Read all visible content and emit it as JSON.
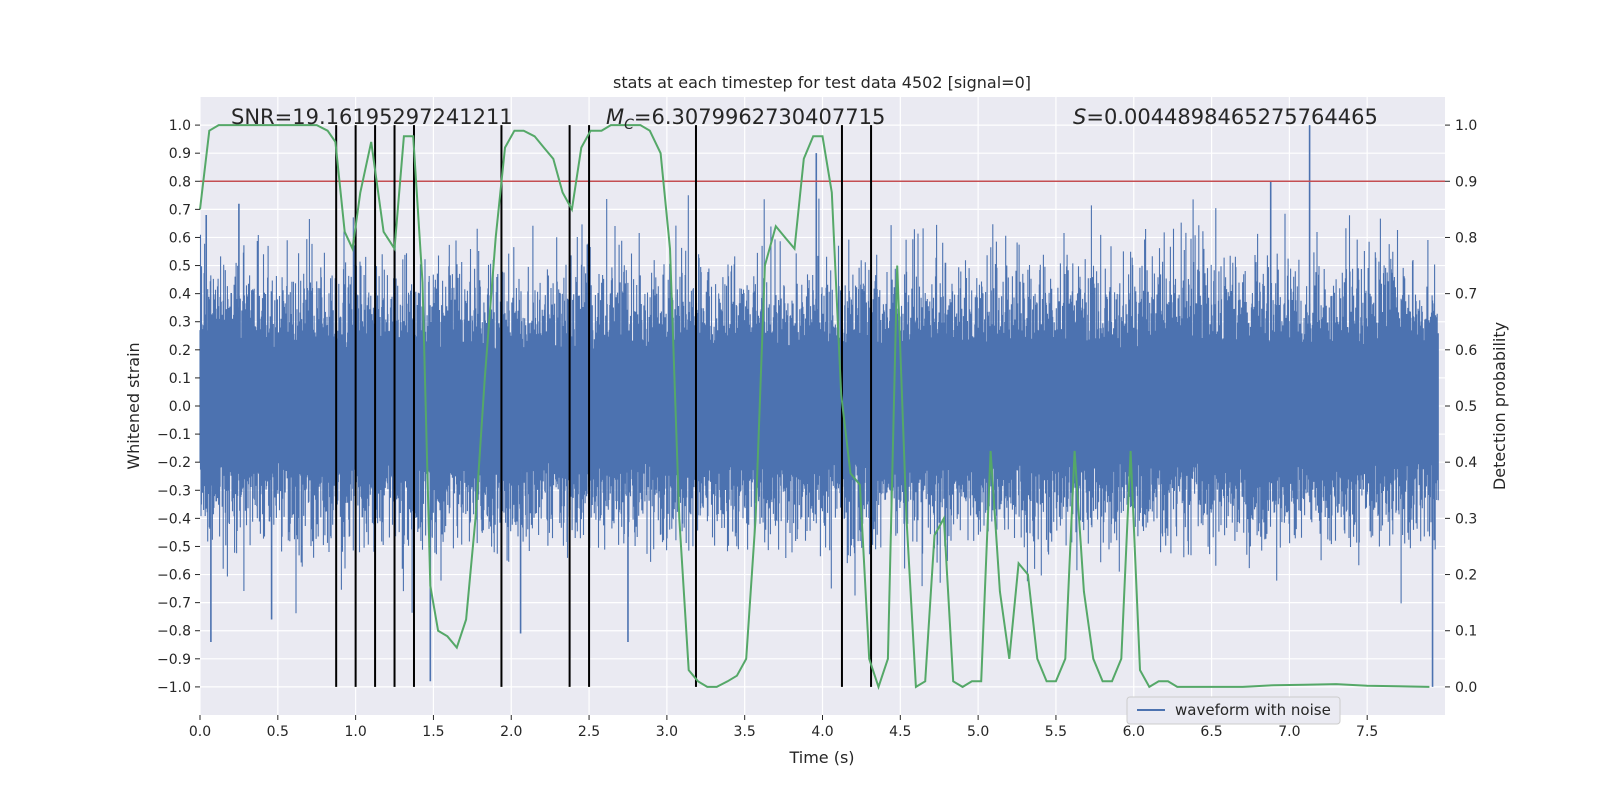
{
  "chart_data": {
    "type": "line",
    "title": "stats at each timestep for test data 4502 [signal=0]",
    "xlabel": "Time (s)",
    "ylabel_left": "Whitened strain",
    "ylabel_right": "Detection probability",
    "xlim": [
      0.0,
      8.0
    ],
    "ylim_left": [
      -1.1,
      1.1
    ],
    "ylim_right": [
      -0.05,
      1.05
    ],
    "x_ticks": [
      0.0,
      0.5,
      1.0,
      1.5,
      2.0,
      2.5,
      3.0,
      3.5,
      4.0,
      4.5,
      5.0,
      5.5,
      6.0,
      6.5,
      7.0,
      7.5
    ],
    "x_tick_labels": [
      "0.0",
      "0.5",
      "1.0",
      "1.5",
      "2.0",
      "2.5",
      "3.0",
      "3.5",
      "4.0",
      "4.5",
      "5.0",
      "5.5",
      "6.0",
      "6.5",
      "7.0",
      "7.5"
    ],
    "y_left_ticks": [
      1.0,
      0.9,
      0.8,
      0.7,
      0.6,
      0.5,
      0.4,
      0.3,
      0.2,
      0.1,
      0.0,
      -0.1,
      -0.2,
      -0.3,
      -0.4,
      -0.5,
      -0.6,
      -0.7,
      -0.8,
      -0.9,
      -1.0
    ],
    "y_left_tick_labels": [
      "1.0",
      "0.9",
      "0.8",
      "0.7",
      "0.6",
      "0.5",
      "0.4",
      "0.3",
      "0.2",
      "0.1",
      "0.0",
      "−0.1",
      "−0.2",
      "−0.3",
      "−0.4",
      "−0.5",
      "−0.6",
      "−0.7",
      "−0.8",
      "−0.9",
      "−1.0"
    ],
    "y_right_ticks": [
      1.0,
      0.9,
      0.8,
      0.7,
      0.6,
      0.5,
      0.4,
      0.3,
      0.2,
      0.1,
      0.0
    ],
    "y_right_tick_labels": [
      "1.0",
      "0.9",
      "0.8",
      "0.7",
      "0.6",
      "0.5",
      "0.4",
      "0.3",
      "0.2",
      "0.1",
      "0.0"
    ],
    "annotations": {
      "snr": "SNR=19.16195297241211",
      "mc_symbol": "M",
      "mc_sub": "C",
      "mc_value": "=6.3079962730407715",
      "s_symbol": "S",
      "s_value": "=0.004489846527576446 5"
    },
    "threshold": {
      "value_right_axis": 0.9,
      "color": "#c44e52"
    },
    "vertical_markers_x": [
      0.875,
      1.0,
      1.125,
      1.25,
      1.375,
      1.937,
      2.375,
      2.5,
      3.187,
      4.125,
      4.312
    ],
    "series": [
      {
        "name": "waveform with noise",
        "color": "#4c72b0",
        "axis": "left",
        "description_points": "dense noise, envelope approx +/-0.4 with spikes up to 1.0",
        "peaks": [
          {
            "x": 0.04,
            "y": 0.68
          },
          {
            "x": 0.07,
            "y": -0.84
          },
          {
            "x": 0.25,
            "y": 0.72
          },
          {
            "x": 0.46,
            "y": -0.76
          },
          {
            "x": 1.48,
            "y": -0.98
          },
          {
            "x": 2.06,
            "y": -0.81
          },
          {
            "x": 2.75,
            "y": -0.84
          },
          {
            "x": 3.96,
            "y": 0.9
          },
          {
            "x": 4.79,
            "y": 0.51
          },
          {
            "x": 5.66,
            "y": -0.2
          },
          {
            "x": 6.88,
            "y": 0.8
          },
          {
            "x": 7.13,
            "y": 1.0
          },
          {
            "x": 7.92,
            "y": -1.0
          }
        ]
      },
      {
        "name": "detection probability",
        "color": "#55a868",
        "axis": "right",
        "x": [
          0.0,
          0.06,
          0.12,
          0.25,
          0.5,
          0.75,
          0.82,
          0.87,
          0.93,
          0.98,
          1.03,
          1.1,
          1.18,
          1.25,
          1.31,
          1.37,
          1.43,
          1.48,
          1.53,
          1.59,
          1.65,
          1.71,
          1.77,
          1.83,
          1.9,
          1.96,
          2.02,
          2.08,
          2.15,
          2.21,
          2.27,
          2.33,
          2.39,
          2.45,
          2.51,
          2.58,
          2.64,
          2.7,
          2.77,
          2.83,
          2.89,
          2.96,
          3.02,
          3.08,
          3.14,
          3.2,
          3.26,
          3.32,
          3.39,
          3.45,
          3.51,
          3.57,
          3.63,
          3.7,
          3.76,
          3.82,
          3.88,
          3.94,
          4.0,
          4.06,
          4.12,
          4.18,
          4.24,
          4.3,
          4.36,
          4.42,
          4.48,
          4.54,
          4.6,
          4.66,
          4.72,
          4.78,
          4.84,
          4.9,
          4.96,
          5.02,
          5.08,
          5.14,
          5.2,
          5.26,
          5.32,
          5.38,
          5.44,
          5.5,
          5.56,
          5.62,
          5.68,
          5.74,
          5.8,
          5.86,
          5.92,
          5.98,
          6.04,
          6.1,
          6.16,
          6.22,
          6.28,
          6.34,
          6.4,
          6.46,
          6.52,
          6.58,
          6.7,
          6.9,
          7.1,
          7.3,
          7.5,
          7.7,
          7.9
        ],
        "values": [
          0.85,
          0.99,
          1.0,
          1.0,
          1.0,
          1.0,
          0.99,
          0.97,
          0.81,
          0.78,
          0.88,
          0.97,
          0.81,
          0.78,
          0.98,
          0.98,
          0.72,
          0.18,
          0.1,
          0.09,
          0.07,
          0.12,
          0.3,
          0.55,
          0.8,
          0.96,
          0.99,
          0.99,
          0.98,
          0.96,
          0.94,
          0.88,
          0.85,
          0.96,
          0.99,
          0.99,
          1.0,
          1.0,
          1.0,
          1.0,
          0.99,
          0.95,
          0.78,
          0.3,
          0.03,
          0.01,
          0.0,
          0.0,
          0.01,
          0.02,
          0.05,
          0.3,
          0.75,
          0.82,
          0.8,
          0.78,
          0.94,
          0.98,
          0.98,
          0.88,
          0.52,
          0.38,
          0.36,
          0.05,
          0.0,
          0.05,
          0.75,
          0.3,
          0.0,
          0.01,
          0.27,
          0.3,
          0.01,
          0.0,
          0.01,
          0.01,
          0.42,
          0.17,
          0.05,
          0.22,
          0.2,
          0.05,
          0.01,
          0.01,
          0.05,
          0.42,
          0.17,
          0.05,
          0.01,
          0.01,
          0.05,
          0.42,
          0.03,
          0.0,
          0.01,
          0.01,
          0.0,
          0.0,
          0.0,
          0.0,
          0.0,
          0.0,
          0.0,
          0.003,
          0.004,
          0.005,
          0.002,
          0.001,
          0.0
        ]
      }
    ],
    "legend": {
      "entry": "waveform with noise",
      "placement": "bottom-right"
    }
  },
  "colors": {
    "axes_bg": "#eaeaf2",
    "grid": "#ffffff",
    "waveform": "#4c72b0",
    "probability": "#55a868",
    "threshold": "#c44e52",
    "marker": "#000000"
  }
}
